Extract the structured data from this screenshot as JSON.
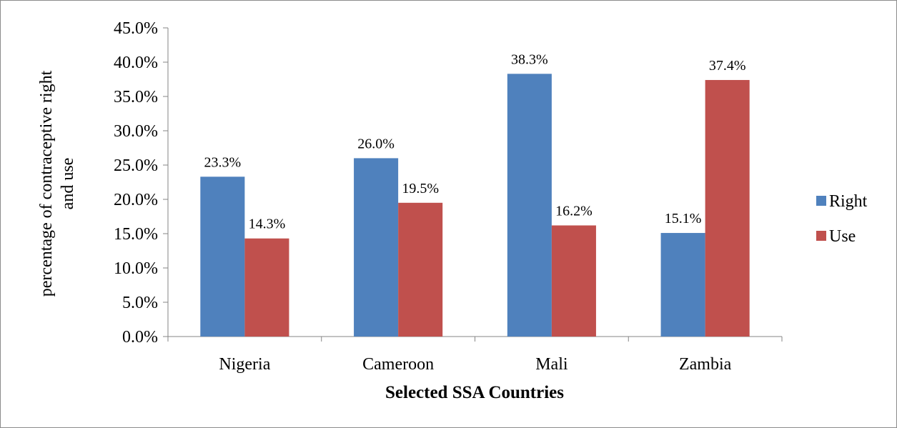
{
  "chart_data": {
    "type": "bar",
    "title": "",
    "xlabel": "Selected SSA Countries",
    "ylabel_lines": [
      "percentage of contraceptive right",
      "and use"
    ],
    "categories": [
      "Nigeria",
      "Cameroon",
      "Mali",
      "Zambia"
    ],
    "series": [
      {
        "name": "Right",
        "color": "#4f81bd",
        "values": [
          23.3,
          26.0,
          38.3,
          15.1
        ],
        "labels": [
          "23.3%",
          "26.0%",
          "38.3%",
          "15.1%"
        ]
      },
      {
        "name": "Use",
        "color": "#c0504d",
        "values": [
          14.3,
          19.5,
          16.2,
          37.4
        ],
        "labels": [
          "14.3%",
          "19.5%",
          "16.2%",
          "37.4%"
        ]
      }
    ],
    "ylim": [
      0,
      45
    ],
    "yticks": [
      "0.0%",
      "5.0%",
      "10.0%",
      "15.0%",
      "20.0%",
      "25.0%",
      "30.0%",
      "35.0%",
      "40.0%",
      "45.0%"
    ],
    "grid": false,
    "legend_position": "right"
  }
}
